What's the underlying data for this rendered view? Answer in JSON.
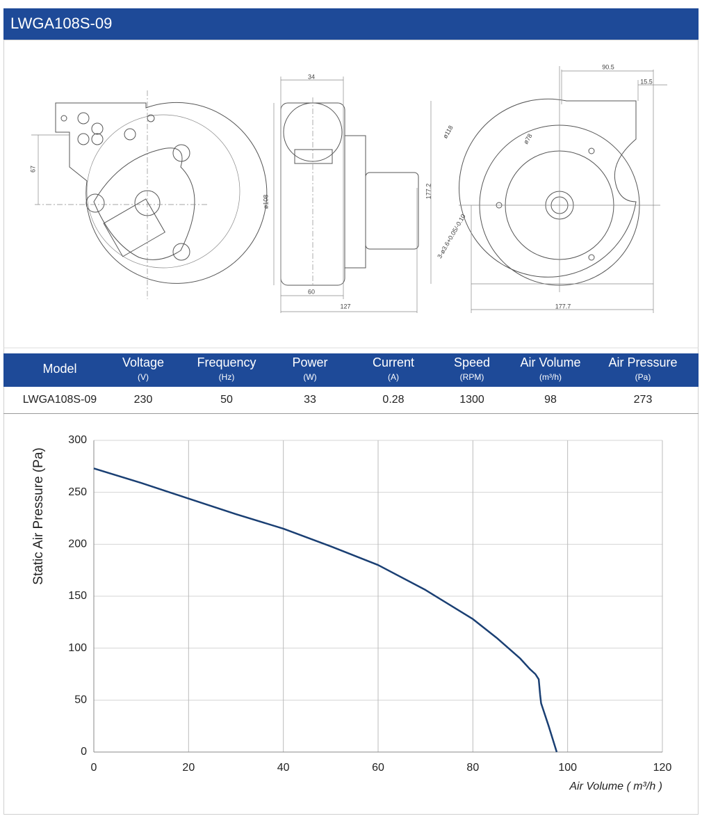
{
  "header": {
    "title": "LWGA108S-09"
  },
  "drawing": {
    "dimensions": [
      "34",
      "67",
      "ø108",
      "60",
      "127",
      "177.2",
      "90.5",
      "15.5",
      "ø118",
      "ø78",
      "177.7",
      "3-ø3.6+0.05/-0.10"
    ]
  },
  "table": {
    "columns": [
      {
        "name": "Model"
      },
      {
        "name": "Voltage",
        "unit": "(V)"
      },
      {
        "name": "Frequency",
        "unit": "(Hz)"
      },
      {
        "name": "Power",
        "unit": "(W)"
      },
      {
        "name": "Current",
        "unit": "(A)"
      },
      {
        "name": "Speed",
        "unit": "(RPM)"
      },
      {
        "name": "Air Volume",
        "unit": "(m³/h)"
      },
      {
        "name": "Air Pressure",
        "unit": "(Pa)"
      }
    ],
    "rows": [
      [
        "LWGA108S-09",
        230,
        50,
        33,
        0.28,
        1300,
        98,
        273
      ]
    ]
  },
  "chart_data": {
    "type": "line",
    "x_label": "Air Volume ( m³/h )",
    "y_label": "Static Air Pressure  (Pa)",
    "x": [
      0,
      10,
      20,
      30,
      40,
      50,
      60,
      70,
      80,
      85,
      90,
      92,
      93.2,
      93.9,
      94.2,
      94.4,
      96,
      97.7
    ],
    "values": [
      273,
      259,
      244,
      229,
      215,
      198,
      180,
      156,
      128,
      110,
      90,
      80,
      75,
      70,
      55,
      47,
      25,
      0
    ],
    "color": "#1a3f73",
    "xlim": [
      0,
      120
    ],
    "ylim": [
      0,
      300
    ],
    "xticks": [
      0,
      20,
      40,
      60,
      80,
      100,
      120
    ],
    "yticks": [
      0,
      50,
      100,
      150,
      200,
      250,
      300
    ],
    "grid": true
  }
}
